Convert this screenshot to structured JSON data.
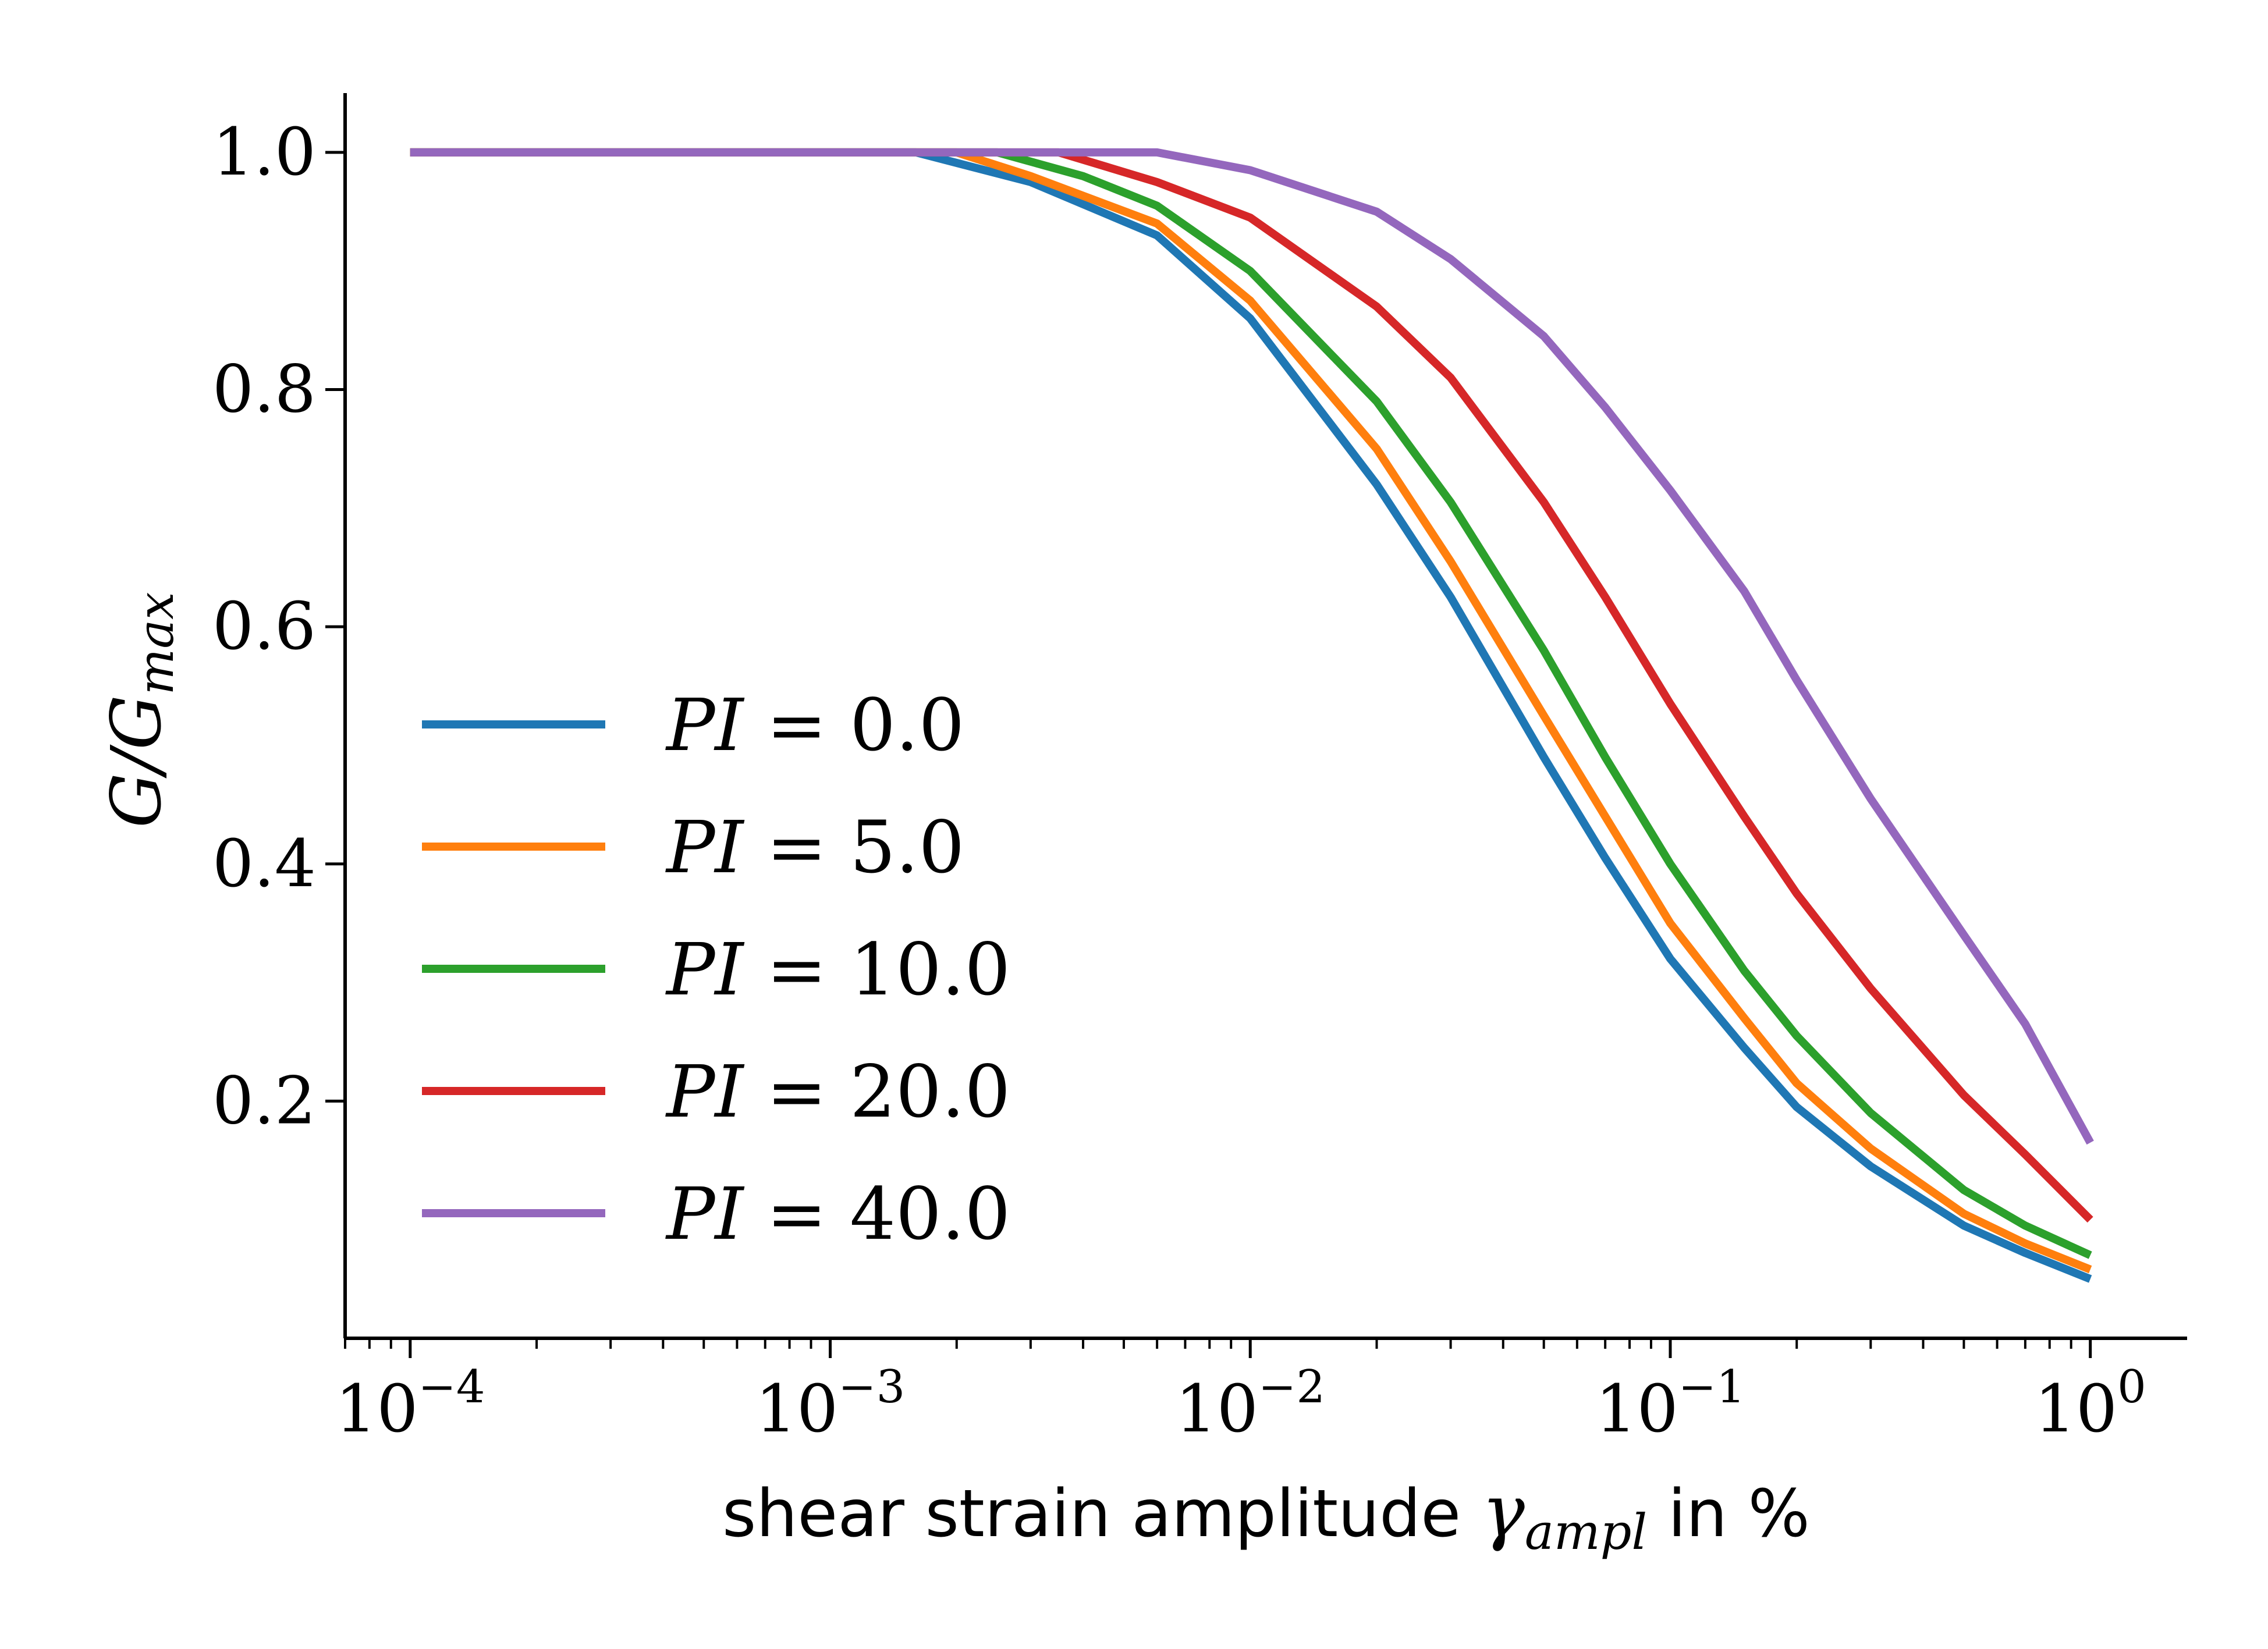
{
  "chart_data": {
    "type": "line",
    "xscale": "log",
    "xlim": [
      7e-05,
      1.7
    ],
    "ylim": [
      0.0,
      1.05
    ],
    "grid": false,
    "legend_location": "lower-left",
    "xlabel": {
      "main": "shear strain amplitude ",
      "symbol": "γ",
      "subscript": "ampl",
      "suffix": " in %"
    },
    "ylabel": {
      "main": "G/G",
      "subscript": "max"
    },
    "xticks": [
      {
        "value": 0.0001,
        "base": "10",
        "exp": "−4"
      },
      {
        "value": 0.001,
        "base": "10",
        "exp": "−3"
      },
      {
        "value": 0.01,
        "base": "10",
        "exp": "−2"
      },
      {
        "value": 0.1,
        "base": "10",
        "exp": "−1"
      },
      {
        "value": 1,
        "base": "10",
        "exp": "0"
      }
    ],
    "yticks": [
      {
        "value": 0.2,
        "label": "0.2"
      },
      {
        "value": 0.4,
        "label": "0.4"
      },
      {
        "value": 0.6,
        "label": "0.6"
      },
      {
        "value": 0.8,
        "label": "0.8"
      },
      {
        "value": 1.0,
        "label": "1.0"
      }
    ],
    "series": [
      {
        "name": "PI = 0.0",
        "pi_label": "PI",
        "value_label": "0.0",
        "color": "#1f77b4",
        "points": [
          [
            0.0001,
            1.0
          ],
          [
            0.0016,
            1.0
          ],
          [
            0.003,
            0.975
          ],
          [
            0.006,
            0.93
          ],
          [
            0.01,
            0.86
          ],
          [
            0.02,
            0.72
          ],
          [
            0.03,
            0.625
          ],
          [
            0.05,
            0.49
          ],
          [
            0.07,
            0.405
          ],
          [
            0.1,
            0.32
          ],
          [
            0.15,
            0.245
          ],
          [
            0.2,
            0.195
          ],
          [
            0.3,
            0.145
          ],
          [
            0.5,
            0.095
          ],
          [
            0.7,
            0.072
          ],
          [
            1.0,
            0.05
          ]
        ]
      },
      {
        "name": "PI = 5.0",
        "pi_label": "PI",
        "value_label": "5.0",
        "color": "#ff7f0e",
        "points": [
          [
            0.0001,
            1.0
          ],
          [
            0.002,
            1.0
          ],
          [
            0.003,
            0.98
          ],
          [
            0.006,
            0.94
          ],
          [
            0.01,
            0.875
          ],
          [
            0.02,
            0.75
          ],
          [
            0.03,
            0.655
          ],
          [
            0.05,
            0.525
          ],
          [
            0.07,
            0.44
          ],
          [
            0.1,
            0.35
          ],
          [
            0.15,
            0.27
          ],
          [
            0.2,
            0.215
          ],
          [
            0.3,
            0.16
          ],
          [
            0.5,
            0.105
          ],
          [
            0.7,
            0.08
          ],
          [
            1.0,
            0.058
          ]
        ]
      },
      {
        "name": "PI = 10.0",
        "pi_label": "PI",
        "value_label": "10.0",
        "color": "#2ca02c",
        "points": [
          [
            0.0001,
            1.0
          ],
          [
            0.0025,
            1.0
          ],
          [
            0.004,
            0.98
          ],
          [
            0.006,
            0.955
          ],
          [
            0.01,
            0.9
          ],
          [
            0.02,
            0.79
          ],
          [
            0.03,
            0.705
          ],
          [
            0.05,
            0.58
          ],
          [
            0.07,
            0.49
          ],
          [
            0.1,
            0.4
          ],
          [
            0.15,
            0.31
          ],
          [
            0.2,
            0.255
          ],
          [
            0.3,
            0.19
          ],
          [
            0.5,
            0.125
          ],
          [
            0.7,
            0.095
          ],
          [
            1.0,
            0.07
          ]
        ]
      },
      {
        "name": "PI = 20.0",
        "pi_label": "PI",
        "value_label": "20.0",
        "color": "#d62728",
        "points": [
          [
            0.0001,
            1.0
          ],
          [
            0.0035,
            1.0
          ],
          [
            0.006,
            0.975
          ],
          [
            0.01,
            0.945
          ],
          [
            0.02,
            0.87
          ],
          [
            0.03,
            0.81
          ],
          [
            0.05,
            0.705
          ],
          [
            0.07,
            0.625
          ],
          [
            0.1,
            0.535
          ],
          [
            0.15,
            0.44
          ],
          [
            0.2,
            0.375
          ],
          [
            0.3,
            0.295
          ],
          [
            0.5,
            0.205
          ],
          [
            0.7,
            0.155
          ],
          [
            1.0,
            0.1
          ]
        ]
      },
      {
        "name": "PI = 40.0",
        "pi_label": "PI",
        "value_label": "40.0",
        "color": "#9467bd",
        "points": [
          [
            0.0001,
            1.0
          ],
          [
            0.006,
            1.0
          ],
          [
            0.01,
            0.985
          ],
          [
            0.02,
            0.95
          ],
          [
            0.03,
            0.91
          ],
          [
            0.05,
            0.845
          ],
          [
            0.07,
            0.785
          ],
          [
            0.1,
            0.715
          ],
          [
            0.15,
            0.63
          ],
          [
            0.2,
            0.555
          ],
          [
            0.3,
            0.455
          ],
          [
            0.5,
            0.34
          ],
          [
            0.7,
            0.265
          ],
          [
            1.0,
            0.165
          ]
        ]
      }
    ]
  }
}
